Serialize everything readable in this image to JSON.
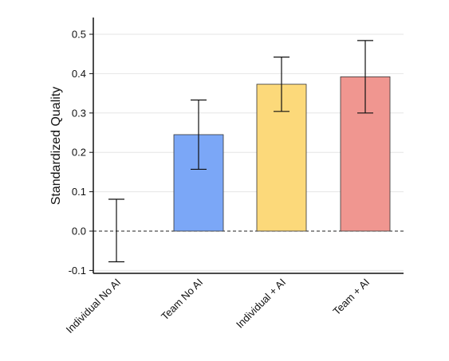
{
  "chart_data": {
    "type": "bar",
    "title": "",
    "xlabel": "",
    "ylabel": "Standardized Quality",
    "ylim": [
      -0.1,
      0.5
    ],
    "yticks": [
      -0.1,
      0.0,
      0.1,
      0.2,
      0.3,
      0.4,
      0.5
    ],
    "ytick_labels": [
      "-0.1",
      "0.0",
      "0.1",
      "0.2",
      "0.3",
      "0.4",
      "0.5"
    ],
    "grid": true,
    "zero_line": "dashed",
    "categories": [
      "Individual No AI",
      "Team No AI",
      "Individual + AI",
      "Team + AI"
    ],
    "values": [
      0.0,
      0.245,
      0.373,
      0.392
    ],
    "error_low": [
      -0.078,
      0.157,
      0.304,
      0.3
    ],
    "error_high": [
      0.081,
      0.333,
      0.442,
      0.484
    ],
    "colors": [
      "#ffffff",
      "#7ba7f7",
      "#fcd97a",
      "#f09690"
    ]
  }
}
